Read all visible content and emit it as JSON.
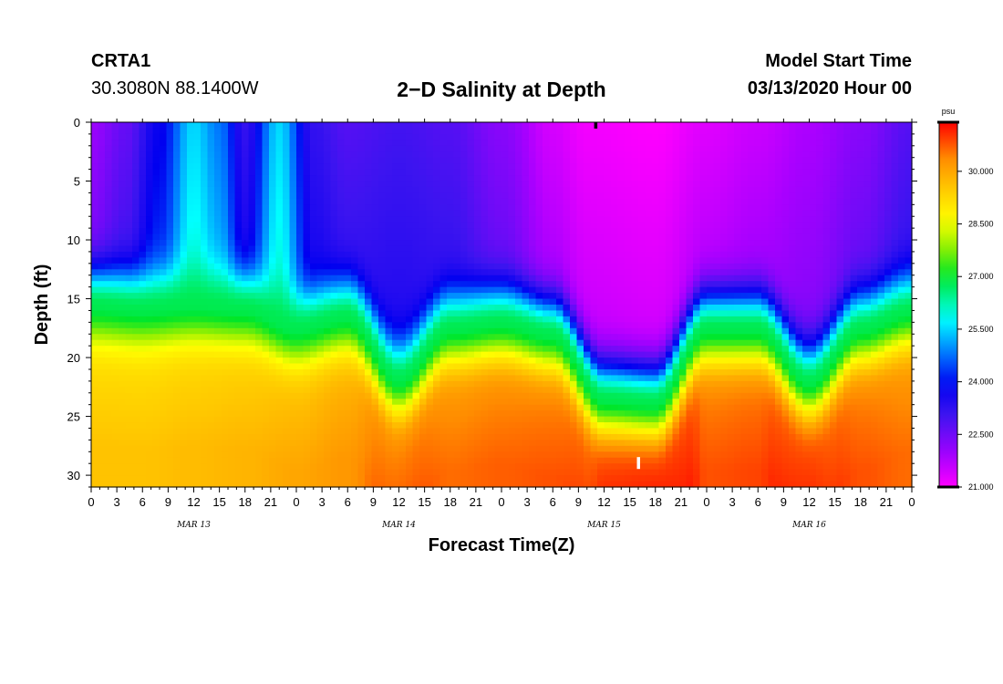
{
  "header": {
    "station": "CRTA1",
    "coords": "30.3080N 88.1400W",
    "title": "2−D Salinity at Depth",
    "start_label": "Model Start Time",
    "start_value": "03/13/2020 Hour 00"
  },
  "chart_data": {
    "type": "heatmap",
    "title": "2−D Salinity at Depth",
    "xlabel": "Forecast Time(Z)",
    "ylabel": "Depth (ft)",
    "x_range_hours": [
      0,
      96
    ],
    "y_range_ft": [
      0,
      31
    ],
    "y_ticks": [
      0,
      5,
      10,
      15,
      20,
      25,
      30
    ],
    "x_tick_labels": [
      "0",
      "3",
      "6",
      "9",
      "12",
      "15",
      "18",
      "21",
      "0",
      "3",
      "6",
      "9",
      "12",
      "15",
      "18",
      "21",
      "0",
      "3",
      "6",
      "9",
      "12",
      "15",
      "18",
      "21",
      "0",
      "3",
      "6",
      "9",
      "12",
      "15",
      "18",
      "21",
      "0"
    ],
    "date_labels": [
      "MAR 13",
      "MAR 14",
      "MAR 15",
      "MAR 16"
    ],
    "colorbar": {
      "units": "psu",
      "range": [
        21.0,
        31.4
      ],
      "tick_values": [
        21.0,
        22.5,
        24.0,
        25.5,
        27.0,
        28.5,
        30.0
      ],
      "tick_labels": [
        "21.000",
        "22.500",
        "24.000",
        "25.500",
        "27.000",
        "28.500",
        "30.000"
      ]
    },
    "halocline_depth_ft": [
      [
        0,
        15.5
      ],
      [
        6,
        15.8
      ],
      [
        12,
        15.5
      ],
      [
        18,
        15.8
      ],
      [
        24,
        17.5
      ],
      [
        30,
        16.5
      ],
      [
        36,
        21.8
      ],
      [
        42,
        17.5
      ],
      [
        48,
        17.0
      ],
      [
        54,
        18.0
      ],
      [
        60,
        23.5
      ],
      [
        66,
        23.8
      ],
      [
        72,
        17.5
      ],
      [
        78,
        17.5
      ],
      [
        84,
        22.0
      ],
      [
        90,
        17.5
      ],
      [
        96,
        16.0
      ]
    ],
    "surface_salinity_psu": [
      [
        0,
        22.0
      ],
      [
        4,
        22.6
      ],
      [
        8,
        23.8
      ],
      [
        12,
        25.5
      ],
      [
        15,
        24.8
      ],
      [
        18,
        23.2
      ],
      [
        22,
        25.5
      ],
      [
        26,
        23.2
      ],
      [
        30,
        22.8
      ],
      [
        36,
        23.0
      ],
      [
        42,
        22.8
      ],
      [
        48,
        22.2
      ],
      [
        54,
        21.4
      ],
      [
        58,
        21.1
      ],
      [
        66,
        21.0
      ],
      [
        72,
        21.3
      ],
      [
        78,
        21.5
      ],
      [
        84,
        21.8
      ],
      [
        90,
        22.2
      ],
      [
        96,
        22.8
      ]
    ],
    "bottom_salinity_psu": [
      [
        0,
        29.6
      ],
      [
        6,
        29.6
      ],
      [
        12,
        29.7
      ],
      [
        18,
        29.8
      ],
      [
        24,
        30.0
      ],
      [
        30,
        30.2
      ],
      [
        34,
        30.7
      ],
      [
        38,
        30.8
      ],
      [
        42,
        30.6
      ],
      [
        48,
        30.7
      ],
      [
        54,
        30.8
      ],
      [
        58,
        31.0
      ],
      [
        60,
        31.3
      ],
      [
        66,
        31.4
      ],
      [
        70,
        31.2
      ],
      [
        72,
        30.8
      ],
      [
        78,
        30.9
      ],
      [
        80,
        31.1
      ],
      [
        84,
        31.2
      ],
      [
        87,
        31.0
      ],
      [
        90,
        30.8
      ],
      [
        96,
        30.6
      ]
    ],
    "markers": [
      {
        "label": "top-marker",
        "x_hour": 59,
        "depth_ft": 0
      },
      {
        "label": "bottom-marker",
        "x_hour": 64,
        "depth_ft": 29
      }
    ]
  }
}
